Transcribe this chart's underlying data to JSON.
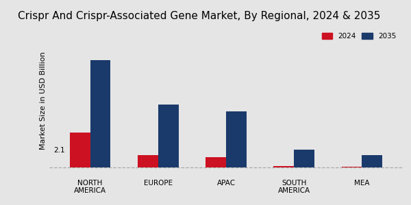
{
  "title": "Crispr And Crispr-Associated Gene Market, By Regional, 2024 & 2035",
  "ylabel": "Market Size in USD Billion",
  "categories": [
    "NORTH\nAMERICA",
    "EUROPE",
    "APAC",
    "SOUTH\nAMERICA",
    "MEA"
  ],
  "values_2024": [
    2.1,
    0.75,
    0.65,
    0.1,
    0.07
  ],
  "values_2035": [
    6.5,
    3.8,
    3.4,
    1.1,
    0.75
  ],
  "color_2024": "#cc1122",
  "color_2035": "#1a3a6b",
  "annotation_text": "2.1",
  "background_color": "#e5e5e5",
  "legend_labels": [
    "2024",
    "2035"
  ],
  "bar_width": 0.3,
  "title_fontsize": 11,
  "label_fontsize": 8,
  "tick_fontsize": 7.5,
  "bottom_strip_color": "#cc1122",
  "dashed_line_color": "#aaaaaa"
}
